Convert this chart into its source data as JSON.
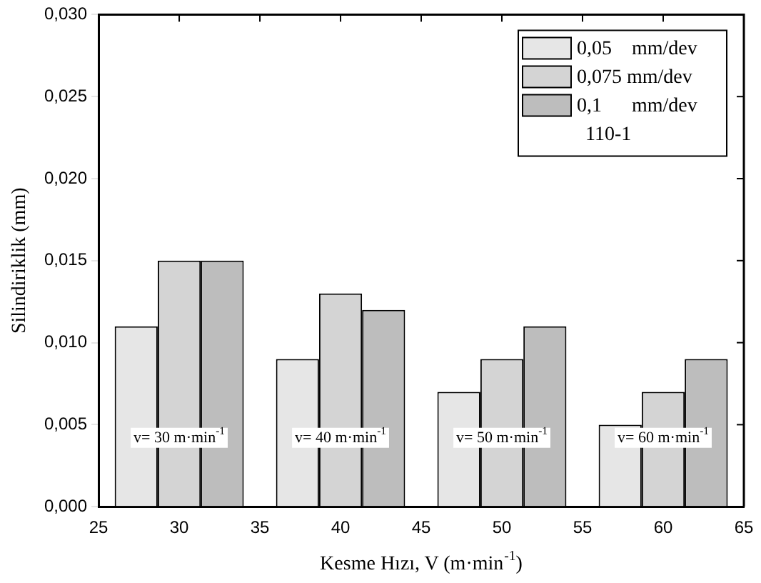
{
  "chart_data": {
    "type": "bar",
    "xlabel": "Kesme Hızı, V (m·min$^{-1}$)",
    "ylabel": "Silindiriklik (mm)",
    "x": [
      30,
      40,
      50,
      60
    ],
    "series": [
      {
        "name": "0,05    mm/dev",
        "color": "#e6e6e6",
        "values": [
          0.011,
          0.009,
          0.007,
          0.005
        ]
      },
      {
        "name": "0,075 mm/dev",
        "color": "#d4d4d4",
        "values": [
          0.015,
          0.013,
          0.009,
          0.007
        ]
      },
      {
        "name": "0,1      mm/dev",
        "color": "#bdbdbd",
        "values": [
          0.015,
          0.012,
          0.011,
          0.009
        ]
      }
    ],
    "xlim": [
      25,
      65
    ],
    "xticks": [
      25,
      30,
      35,
      40,
      45,
      50,
      55,
      60,
      65
    ],
    "ylim": [
      0,
      0.03
    ],
    "yticks": [
      {
        "value": 0,
        "label": "0,000"
      },
      {
        "value": 0.005,
        "label": "0,005"
      },
      {
        "value": 0.01,
        "label": "0,010"
      },
      {
        "value": 0.015,
        "label": "0,015"
      },
      {
        "value": 0.02,
        "label": "0,020"
      },
      {
        "value": 0.025,
        "label": "0,025"
      },
      {
        "value": 0.03,
        "label": "0,030"
      }
    ],
    "legend": "top right",
    "grid": false,
    "annotations": [
      "110-1",
      "v= 30 m·min$^{-1}$",
      "v= 40 m·min$^{-1}$",
      "v= 50 m·min$^{-1}$",
      "v= 60 m·min$^{-1}$"
    ]
  }
}
